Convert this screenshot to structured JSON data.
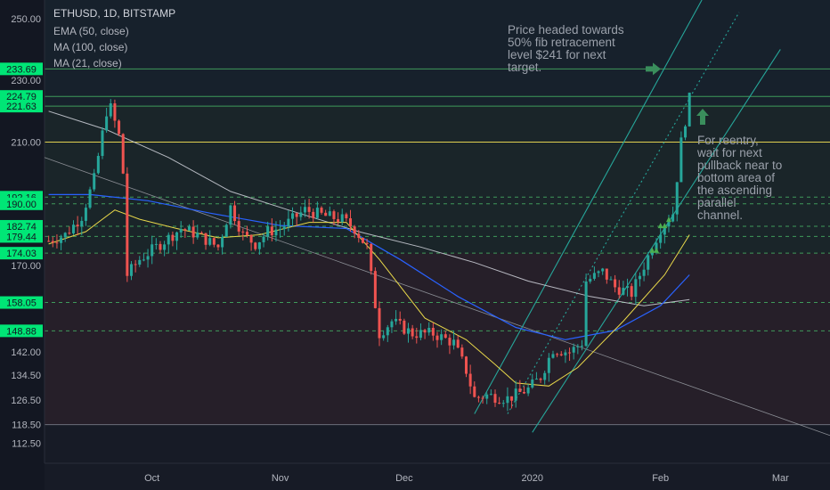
{
  "symbol_title": "ETHUSD, 1D, BITSTAMP",
  "indicators": [
    "EMA (50, close)",
    "MA (100, close)",
    "MA (21, close)"
  ],
  "annotations": {
    "target_note": "Price headed towards\n50% fib retracement\nlevel $241 for next\ntarget.",
    "reentry_note": "For reentry,\nwait for next\npullback near to\nbottom area of\nthe ascending\nparallel\nchannel."
  },
  "colors": {
    "background": "#131722",
    "axis_text": "#b2b5be",
    "up_candle": "#26a69a",
    "down_candle": "#ef5350",
    "level_highlight": "#00e676",
    "yellow_line": "#e0d050",
    "ema50": "#2962ff",
    "ma100": "#d1d4dc",
    "ma21": "#e8d84a",
    "channel": "#26a69a",
    "arrow": "#3a8e5c"
  },
  "chart_data": {
    "type": "candlestick",
    "title": "ETHUSD, 1D, BITSTAMP",
    "x_start_date": "2019-09-05",
    "x_end_date": "2020-03-13",
    "x_ticks": [
      "Oct",
      "Nov",
      "Dec",
      "2020",
      "Feb",
      "Mar"
    ],
    "y_ticks": [
      250.0,
      230.0,
      210.0,
      170.0,
      142.0,
      134.5,
      126.5,
      118.5,
      112.5
    ],
    "highlighted_levels": [
      233.69,
      224.79,
      221.63,
      192.16,
      190.0,
      182.74,
      179.44,
      174.03,
      158.05,
      148.88
    ],
    "ylim": [
      106,
      256
    ],
    "price_series": [
      [
        "2019-09-06",
        178
      ],
      [
        "2019-09-10",
        180
      ],
      [
        "2019-09-14",
        186
      ],
      [
        "2019-09-17",
        198
      ],
      [
        "2019-09-20",
        220
      ],
      [
        "2019-09-21",
        221
      ],
      [
        "2019-09-23",
        212
      ],
      [
        "2019-09-24",
        200
      ],
      [
        "2019-09-25",
        167
      ],
      [
        "2019-09-28",
        172
      ],
      [
        "2019-10-03",
        177
      ],
      [
        "2019-10-08",
        182
      ],
      [
        "2019-10-12",
        180
      ],
      [
        "2019-10-17",
        176
      ],
      [
        "2019-10-20",
        189
      ],
      [
        "2019-10-23",
        180
      ],
      [
        "2019-10-26",
        177
      ],
      [
        "2019-10-29",
        181
      ],
      [
        "2019-11-01",
        182
      ],
      [
        "2019-11-07",
        188
      ],
      [
        "2019-11-12",
        186
      ],
      [
        "2019-11-16",
        185
      ],
      [
        "2019-11-19",
        182
      ],
      [
        "2019-11-22",
        176
      ],
      [
        "2019-11-25",
        148
      ],
      [
        "2019-11-28",
        152
      ],
      [
        "2019-12-03",
        148
      ],
      [
        "2019-12-08",
        148
      ],
      [
        "2019-12-13",
        145
      ],
      [
        "2019-12-16",
        136
      ],
      [
        "2019-12-18",
        127
      ],
      [
        "2019-12-21",
        128
      ],
      [
        "2019-12-26",
        127
      ],
      [
        "2019-12-31",
        130
      ],
      [
        "2020-01-03",
        134
      ],
      [
        "2020-01-06",
        143
      ],
      [
        "2020-01-10",
        142
      ],
      [
        "2020-01-13",
        145
      ],
      [
        "2020-01-14",
        165
      ],
      [
        "2020-01-18",
        168
      ],
      [
        "2020-01-21",
        163
      ],
      [
        "2020-01-25",
        161
      ],
      [
        "2020-01-29",
        173
      ],
      [
        "2020-02-01",
        182
      ],
      [
        "2020-02-04",
        187
      ],
      [
        "2020-02-06",
        210
      ],
      [
        "2020-02-08",
        224
      ]
    ],
    "ma21": [
      [
        "2019-09-06",
        177
      ],
      [
        "2019-09-15",
        181
      ],
      [
        "2019-09-22",
        188
      ],
      [
        "2019-09-28",
        185
      ],
      [
        "2019-10-07",
        182
      ],
      [
        "2019-10-17",
        179
      ],
      [
        "2019-10-27",
        180
      ],
      [
        "2019-11-08",
        184
      ],
      [
        "2019-11-17",
        184
      ],
      [
        "2019-11-25",
        172
      ],
      [
        "2019-12-06",
        153
      ],
      [
        "2019-12-16",
        146
      ],
      [
        "2019-12-23",
        138
      ],
      [
        "2019-12-28",
        132
      ],
      [
        "2020-01-05",
        131
      ],
      [
        "2020-01-12",
        137
      ],
      [
        "2020-01-23",
        152
      ],
      [
        "2020-02-02",
        167
      ],
      [
        "2020-02-08",
        180
      ]
    ],
    "ema50": [
      [
        "2019-09-06",
        193
      ],
      [
        "2019-09-16",
        193
      ],
      [
        "2019-09-30",
        191
      ],
      [
        "2019-10-15",
        187
      ],
      [
        "2019-11-01",
        183
      ],
      [
        "2019-11-17",
        182
      ],
      [
        "2019-11-30",
        172
      ],
      [
        "2019-12-14",
        160
      ],
      [
        "2019-12-28",
        150
      ],
      [
        "2020-01-09",
        146
      ],
      [
        "2020-01-21",
        149
      ],
      [
        "2020-02-01",
        157
      ],
      [
        "2020-02-08",
        167
      ]
    ],
    "ma100": [
      [
        "2019-09-06",
        220
      ],
      [
        "2019-09-20",
        214
      ],
      [
        "2019-10-05",
        205
      ],
      [
        "2019-10-20",
        194
      ],
      [
        "2019-11-03",
        188
      ],
      [
        "2019-11-20",
        181
      ],
      [
        "2019-12-05",
        176
      ],
      [
        "2019-12-18",
        171
      ],
      [
        "2019-12-31",
        165
      ],
      [
        "2020-01-15",
        160
      ],
      [
        "2020-01-28",
        157
      ],
      [
        "2020-02-08",
        159
      ]
    ],
    "trend_lines": [
      {
        "name": "downtrend",
        "from": [
          "2019-09-05",
          205
        ],
        "to": [
          "2020-03-13",
          115
        ]
      },
      {
        "name": "channel-upper",
        "from": [
          "2019-12-18",
          122
        ],
        "to": [
          "2020-02-11",
          256
        ]
      },
      {
        "name": "channel-mid",
        "from": [
          "2019-12-26",
          122
        ],
        "to": [
          "2020-02-20",
          252
        ]
      },
      {
        "name": "channel-lower",
        "from": [
          "2020-01-01",
          116
        ],
        "to": [
          "2020-03-01",
          240
        ]
      }
    ]
  }
}
